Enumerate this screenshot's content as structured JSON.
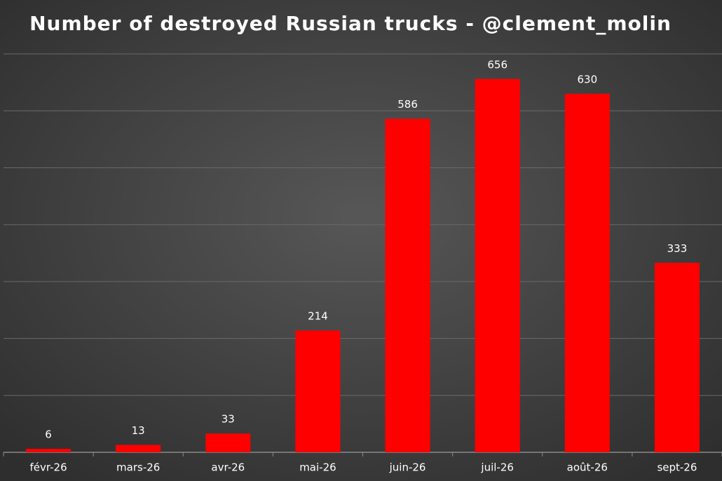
{
  "chart_data": {
    "type": "bar",
    "title": "Number of destroyed Russian trucks - @clement_molin",
    "categories": [
      "févr-26",
      "mars-26",
      "avr-26",
      "mai-26",
      "juin-26",
      "juil-26",
      "août-26",
      "sept-26"
    ],
    "values": [
      6,
      13,
      33,
      214,
      586,
      656,
      630,
      333
    ],
    "color": "#ff0000",
    "ylim": [
      0,
      700
    ],
    "yticks": [
      0,
      100,
      200,
      300,
      400,
      500,
      600,
      700
    ],
    "grid": true,
    "data_labels": true
  }
}
